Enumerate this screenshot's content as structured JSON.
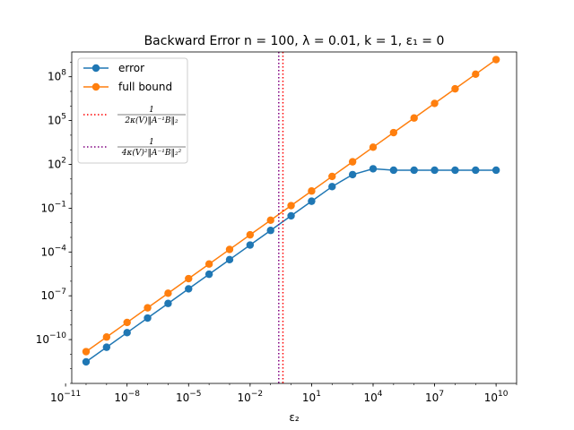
{
  "chart_data": {
    "type": "line",
    "title": "Backward Error n = 100, λ = 0.01, k = 1, ε₁ = 0",
    "xlabel": "ε₂",
    "ylabel": "",
    "xscale": "log",
    "yscale": "log",
    "xlim": [
      2e-11,
      100000000000.0
    ],
    "ylim": [
      1e-13,
      5000000000.0
    ],
    "grid": false,
    "legend_position": "top-left",
    "x_ticks": [
      {
        "mant": "10",
        "exp": "−11",
        "value": 1e-11
      },
      {
        "mant": "10",
        "exp": "−8",
        "value": 1e-08
      },
      {
        "mant": "10",
        "exp": "−5",
        "value": 1e-05
      },
      {
        "mant": "10",
        "exp": "−2",
        "value": 0.01
      },
      {
        "mant": "10",
        "exp": "1",
        "value": 10.0
      },
      {
        "mant": "10",
        "exp": "4",
        "value": 10000.0
      },
      {
        "mant": "10",
        "exp": "7",
        "value": 10000000.0
      },
      {
        "mant": "10",
        "exp": "10",
        "value": 10000000000.0
      }
    ],
    "y_ticks": [
      {
        "mant": "10",
        "exp": "−10",
        "value": 1e-10
      },
      {
        "mant": "10",
        "exp": "−7",
        "value": 1e-07
      },
      {
        "mant": "10",
        "exp": "−4",
        "value": 0.0001
      },
      {
        "mant": "10",
        "exp": "−1",
        "value": 0.1
      },
      {
        "mant": "10",
        "exp": "2",
        "value": 100.0
      },
      {
        "mant": "10",
        "exp": "5",
        "value": 100000.0
      },
      {
        "mant": "10",
        "exp": "8",
        "value": 100000000.0
      }
    ],
    "x": [
      1e-10,
      1e-09,
      1e-08,
      1e-07,
      1e-06,
      1e-05,
      0.0001,
      0.001,
      0.01,
      0.1,
      1,
      10.0,
      100.0,
      1000.0,
      10000.0,
      100000.0,
      1000000.0,
      10000000.0,
      100000000.0,
      1000000000.0,
      10000000000.0
    ],
    "series": [
      {
        "name": "error",
        "color": "#1f77b4",
        "marker": "circle",
        "values": [
          3e-12,
          3e-11,
          3e-10,
          3e-09,
          3e-08,
          3e-07,
          3e-06,
          3e-05,
          0.0003,
          0.003,
          0.03,
          0.3,
          3.0,
          20.0,
          50.0,
          40.0,
          40.0,
          40.0,
          40.0,
          40.0,
          40.0
        ]
      },
      {
        "name": "full bound",
        "color": "#ff7f0e",
        "marker": "circle",
        "values": [
          1.5e-11,
          1.5e-10,
          1.5e-09,
          1.5e-08,
          1.5e-07,
          1.5e-06,
          1.5e-05,
          0.00015,
          0.0015,
          0.015,
          0.15,
          1.5,
          15.0,
          150.0,
          1500.0,
          15000.0,
          150000.0,
          1500000.0,
          15000000.0,
          150000000.0,
          1500000000.0
        ]
      }
    ],
    "vlines": [
      {
        "x": 0.4,
        "color": "#ff0000",
        "style": "dotted",
        "legend_pre": "1",
        "legend_den": "2κ(V)‖A⁻¹B‖₂"
      },
      {
        "x": 0.25,
        "color": "#800080",
        "style": "dotted",
        "legend_pre": "1",
        "legend_den": "4κ(V)²‖A⁻¹B‖₂²"
      }
    ]
  }
}
